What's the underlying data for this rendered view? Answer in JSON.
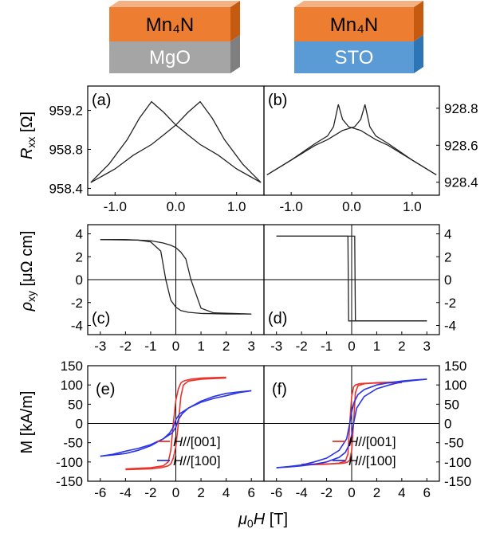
{
  "substrates": {
    "left": {
      "film": "Mn₄N",
      "substrate": "MgO",
      "film_color": "#ED7D31",
      "substrate_color": "#A5A5A5"
    },
    "right": {
      "film": "Mn₄N",
      "substrate": "STO",
      "film_color": "#ED7D31",
      "substrate_color": "#5B9BD5"
    }
  },
  "axes": {
    "row1_ylabel_main": "R",
    "row1_ylabel_sub": "xx",
    "row1_ylabel_unit": " [Ω]",
    "row2_ylabel_main": "ρ",
    "row2_ylabel_sub": "xy",
    "row2_ylabel_unit": " [μΩ cm]",
    "row3_ylabel": "M [kA/m]",
    "xlabel_mu": "μ",
    "xlabel_sub": "0",
    "xlabel_H": "H",
    "xlabel_unit": " [T]"
  },
  "chart_data": [
    {
      "id": "a",
      "panel_label": "(a)",
      "type": "line",
      "xlim": [
        -1.45,
        1.45
      ],
      "ylim": [
        958.33,
        959.45
      ],
      "xticks": [
        -1.0,
        0.0,
        1.0
      ],
      "xtick_labels": [
        "-1.0",
        "0.0",
        "1.0"
      ],
      "yticks": [
        958.4,
        958.8,
        959.2
      ],
      "ytick_labels": [
        "958.4",
        "958.8",
        "959.2"
      ],
      "yaxis_side": "left",
      "series": [
        {
          "color": "#222222",
          "x": [
            -1.4,
            -1.1,
            -0.8,
            -0.6,
            -0.4,
            -0.2,
            0,
            0.2,
            0.4,
            0.7,
            1.0,
            1.2,
            1.4
          ],
          "y": [
            958.46,
            958.65,
            958.9,
            959.12,
            959.29,
            959.18,
            959.05,
            958.95,
            958.85,
            958.74,
            958.6,
            958.53,
            958.46
          ]
        },
        {
          "color": "#222222",
          "x": [
            -1.4,
            -1.2,
            -1.0,
            -0.7,
            -0.4,
            -0.2,
            0,
            0.2,
            0.4,
            0.6,
            0.8,
            1.1,
            1.4
          ],
          "y": [
            958.46,
            958.53,
            958.6,
            958.74,
            958.85,
            958.95,
            959.05,
            959.18,
            959.29,
            959.12,
            958.9,
            958.65,
            958.46
          ]
        }
      ]
    },
    {
      "id": "b",
      "panel_label": "(b)",
      "type": "line",
      "xlim": [
        -1.45,
        1.45
      ],
      "ylim": [
        928.33,
        928.92
      ],
      "xticks": [
        -1.0,
        0.0,
        1.0
      ],
      "xtick_labels": [
        "-1.0",
        "0.0",
        "1.0"
      ],
      "yticks": [
        928.4,
        928.6,
        928.8
      ],
      "ytick_labels": [
        "928.4",
        "928.6",
        "928.8"
      ],
      "yaxis_side": "right",
      "series": [
        {
          "color": "#222222",
          "x": [
            -1.4,
            -1.0,
            -0.6,
            -0.4,
            -0.3,
            -0.22,
            -0.15,
            -0.05,
            0.05,
            0.15,
            0.25,
            0.3,
            0.4,
            0.6,
            1.0,
            1.4
          ],
          "y": [
            928.44,
            928.52,
            928.61,
            928.65,
            928.7,
            928.82,
            928.74,
            928.7,
            928.69,
            928.68,
            928.66,
            928.65,
            928.63,
            928.6,
            928.52,
            928.44
          ]
        },
        {
          "color": "#222222",
          "x": [
            -1.4,
            -1.0,
            -0.6,
            -0.4,
            -0.3,
            -0.25,
            -0.15,
            -0.05,
            0.05,
            0.15,
            0.22,
            0.3,
            0.4,
            0.6,
            1.0,
            1.4
          ],
          "y": [
            928.44,
            928.52,
            928.6,
            928.63,
            928.65,
            928.66,
            928.68,
            928.69,
            928.7,
            928.74,
            928.82,
            928.7,
            928.65,
            928.61,
            928.52,
            928.44
          ]
        }
      ]
    },
    {
      "id": "c",
      "panel_label": "(c)",
      "type": "line",
      "xlim": [
        -3.5,
        3.5
      ],
      "ylim": [
        -4.8,
        4.8
      ],
      "xticks": [
        -3,
        -2,
        -1,
        0,
        1,
        2,
        3
      ],
      "xtick_labels": [
        "-3",
        "-2",
        "-1",
        "0",
        "1",
        "2",
        "3"
      ],
      "yticks": [
        -4,
        -2,
        0,
        2,
        4
      ],
      "ytick_labels": [
        "-4",
        "-2",
        "0",
        "2",
        "4"
      ],
      "yaxis_side": "left",
      "series": [
        {
          "color": "#222222",
          "x": [
            -3,
            -1.5,
            -1,
            -0.6,
            -0.4,
            -0.2,
            0,
            0.2,
            0.5,
            1,
            2,
            3
          ],
          "y": [
            3.5,
            3.45,
            3.3,
            2.5,
            0,
            -1.8,
            -2.4,
            -2.7,
            -2.85,
            -2.95,
            -3.0,
            -3.0
          ]
        },
        {
          "color": "#222222",
          "x": [
            -3,
            -2,
            -1,
            -0.5,
            -0.2,
            0,
            0.2,
            0.4,
            0.6,
            1,
            1.5,
            3
          ],
          "y": [
            3.5,
            3.5,
            3.4,
            3.2,
            3.0,
            2.8,
            2.4,
            1.8,
            0,
            -2.5,
            -2.9,
            -3.0
          ]
        }
      ]
    },
    {
      "id": "d",
      "panel_label": "(d)",
      "type": "line",
      "xlim": [
        -3.5,
        3.5
      ],
      "ylim": [
        -4.8,
        4.8
      ],
      "xticks": [
        -3,
        -2,
        -1,
        0,
        1,
        2,
        3
      ],
      "xtick_labels": [
        "-3",
        "-2",
        "-1",
        "0",
        "1",
        "2",
        "3"
      ],
      "yticks": [
        -4,
        -2,
        0,
        2,
        4
      ],
      "ytick_labels": [
        "-4",
        "-2",
        "0",
        "2",
        "4"
      ],
      "yaxis_side": "right",
      "series": [
        {
          "color": "#222222",
          "x": [
            -3,
            -0.15,
            -0.12,
            3
          ],
          "y": [
            3.8,
            3.8,
            -3.6,
            -3.6
          ]
        },
        {
          "color": "#222222",
          "x": [
            -3,
            0.12,
            0.15,
            3
          ],
          "y": [
            3.8,
            3.8,
            -3.6,
            -3.6
          ]
        }
      ]
    },
    {
      "id": "e",
      "panel_label": "(e)",
      "type": "line",
      "xlim": [
        -7,
        7
      ],
      "ylim": [
        -150,
        150
      ],
      "xticks": [
        -6,
        -4,
        -2,
        0,
        2,
        4,
        6
      ],
      "xtick_labels": [
        "-6",
        "-4",
        "-2",
        "0",
        "2",
        "4",
        "6"
      ],
      "yticks": [
        -150,
        -100,
        -50,
        0,
        50,
        100,
        150
      ],
      "ytick_labels": [
        "-150",
        "-100",
        "-50",
        "0",
        "50",
        "100",
        "150"
      ],
      "yaxis_side": "left",
      "legend": [
        {
          "color": "#E8332A",
          "prefix": "H",
          "suffix": "//[001]"
        },
        {
          "color": "#2B35E6",
          "prefix": "H",
          "suffix": "//[100]"
        }
      ],
      "series": [
        {
          "color": "#E8332A",
          "x": [
            -4,
            -2,
            -1,
            -0.6,
            -0.4,
            -0.2,
            0,
            0.2,
            0.4,
            0.6,
            0.8,
            1.2,
            2,
            4
          ],
          "y": [
            -118,
            -115,
            -110,
            -100,
            -70,
            0,
            60,
            90,
            105,
            110,
            112,
            115,
            118,
            120
          ]
        },
        {
          "color": "#E8332A",
          "x": [
            -4,
            -2,
            -1.2,
            -0.8,
            -0.6,
            -0.4,
            -0.2,
            0,
            0.2,
            0.4,
            0.6,
            1,
            2,
            4
          ],
          "y": [
            -120,
            -118,
            -115,
            -112,
            -110,
            -105,
            -90,
            -60,
            0,
            70,
            100,
            110,
            115,
            118
          ]
        },
        {
          "color": "#2B35E6",
          "x": [
            -6,
            -5,
            -4,
            -3,
            -2,
            -1,
            -0.5,
            -0.2,
            0,
            0.3,
            1,
            2,
            3,
            4,
            5,
            6
          ],
          "y": [
            -85,
            -82,
            -78,
            -70,
            -58,
            -40,
            -25,
            -10,
            10,
            25,
            40,
            55,
            65,
            72,
            80,
            85
          ]
        },
        {
          "color": "#2B35E6",
          "x": [
            -6,
            -5,
            -4,
            -3,
            -2,
            -1,
            -0.3,
            0,
            0.2,
            0.5,
            1,
            2,
            3,
            4,
            5,
            6
          ],
          "y": [
            -85,
            -80,
            -72,
            -65,
            -55,
            -40,
            -25,
            -10,
            10,
            25,
            40,
            58,
            70,
            78,
            82,
            85
          ]
        }
      ]
    },
    {
      "id": "f",
      "panel_label": "(f)",
      "type": "line",
      "xlim": [
        -7,
        7
      ],
      "ylim": [
        -150,
        150
      ],
      "xticks": [
        -6,
        -4,
        -2,
        0,
        2,
        4,
        6
      ],
      "xtick_labels": [
        "-6",
        "-4",
        "-2",
        "0",
        "2",
        "4",
        "6"
      ],
      "yticks": [
        -150,
        -100,
        -50,
        0,
        50,
        100,
        150
      ],
      "ytick_labels": [
        "-150",
        "-100",
        "-50",
        "0",
        "50",
        "100",
        "150"
      ],
      "yaxis_side": "right",
      "legend": [
        {
          "color": "#E8332A",
          "prefix": "H",
          "suffix": "//[001]"
        },
        {
          "color": "#2B35E6",
          "prefix": "H",
          "suffix": "//[100]"
        }
      ],
      "series": [
        {
          "color": "#E8332A",
          "x": [
            -4,
            -2,
            -1,
            -0.5,
            -0.3,
            -0.15,
            0,
            0.15,
            0.3,
            0.6,
            1,
            2,
            4
          ],
          "y": [
            -108,
            -106,
            -103,
            -98,
            -80,
            0,
            70,
            95,
            100,
            103,
            104,
            105,
            106
          ]
        },
        {
          "color": "#E8332A",
          "x": [
            -4,
            -2,
            -1,
            -0.6,
            -0.3,
            -0.15,
            0,
            0.15,
            0.3,
            0.5,
            1,
            2,
            4
          ],
          "y": [
            -106,
            -105,
            -104,
            -103,
            -100,
            -95,
            -70,
            0,
            80,
            98,
            103,
            106,
            108
          ]
        },
        {
          "color": "#2B35E6",
          "x": [
            -6,
            -5,
            -4,
            -3,
            -2,
            -1,
            -0.4,
            -0.15,
            0,
            0.2,
            0.5,
            1,
            2,
            3,
            4,
            5,
            6
          ],
          "y": [
            -115,
            -112,
            -108,
            -100,
            -90,
            -70,
            -40,
            0,
            30,
            55,
            75,
            88,
            100,
            106,
            110,
            113,
            115
          ]
        },
        {
          "color": "#2B35E6",
          "x": [
            -6,
            -5,
            -4,
            -3,
            -2,
            -1,
            -0.5,
            -0.2,
            0,
            0.15,
            0.4,
            1,
            2,
            3,
            4,
            5,
            6
          ],
          "y": [
            -115,
            -113,
            -110,
            -106,
            -100,
            -88,
            -75,
            -55,
            -30,
            0,
            40,
            70,
            90,
            100,
            108,
            112,
            115
          ]
        }
      ]
    }
  ]
}
